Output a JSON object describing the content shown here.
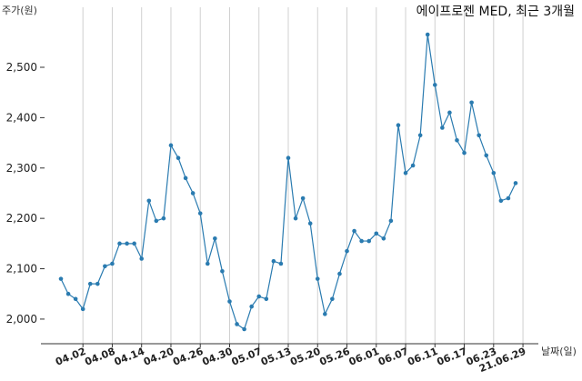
{
  "chart_data": {
    "type": "line",
    "title": "에이프로젠 MED, 최근 3개월",
    "ylabel": "주가(원)",
    "xlabel": "날짜(일)",
    "ylim": [
      1950,
      2600
    ],
    "yticks": [
      2000,
      2100,
      2200,
      2300,
      2400,
      2500
    ],
    "ytick_labels": [
      "2,000",
      "2,100",
      "2,200",
      "2,300",
      "2,400",
      "2,500"
    ],
    "grid": "vertical",
    "line_color": "#2a7bb0",
    "xtick_labels": [
      {
        "label": "04.02",
        "index": 3
      },
      {
        "label": "04.08",
        "index": 7
      },
      {
        "label": "04.14",
        "index": 11
      },
      {
        "label": "04.20",
        "index": 15
      },
      {
        "label": "04.26",
        "index": 19
      },
      {
        "label": "04.30",
        "index": 23
      },
      {
        "label": "05.07",
        "index": 27
      },
      {
        "label": "05.13",
        "index": 31
      },
      {
        "label": "05.20",
        "index": 35
      },
      {
        "label": "05.26",
        "index": 39
      },
      {
        "label": "06.01",
        "index": 43
      },
      {
        "label": "06.07",
        "index": 47
      },
      {
        "label": "06.11",
        "index": 51
      },
      {
        "label": "06.17",
        "index": 55
      },
      {
        "label": "06.23",
        "index": 59
      },
      {
        "label": "21.06.29",
        "index": 63
      }
    ],
    "series": [
      {
        "values": [
          2080,
          2050,
          2040,
          2020,
          2070,
          2070,
          2105,
          2110,
          2150,
          2150,
          2150,
          2120,
          2235,
          2195,
          2200,
          2345,
          2320,
          2280,
          2250,
          2210,
          2110,
          2160,
          2095,
          2035,
          1990,
          1980,
          2025,
          2045,
          2040,
          2115,
          2110,
          2320,
          2200,
          2240,
          2190,
          2080,
          2010,
          2040,
          2090,
          2135,
          2175,
          2155,
          2155,
          2170,
          2160,
          2195,
          2385,
          2290,
          2305,
          2365,
          2565,
          2465,
          2380,
          2410,
          2355,
          2330,
          2430,
          2365,
          2325,
          2290,
          2235,
          2240,
          2270
        ]
      }
    ]
  }
}
